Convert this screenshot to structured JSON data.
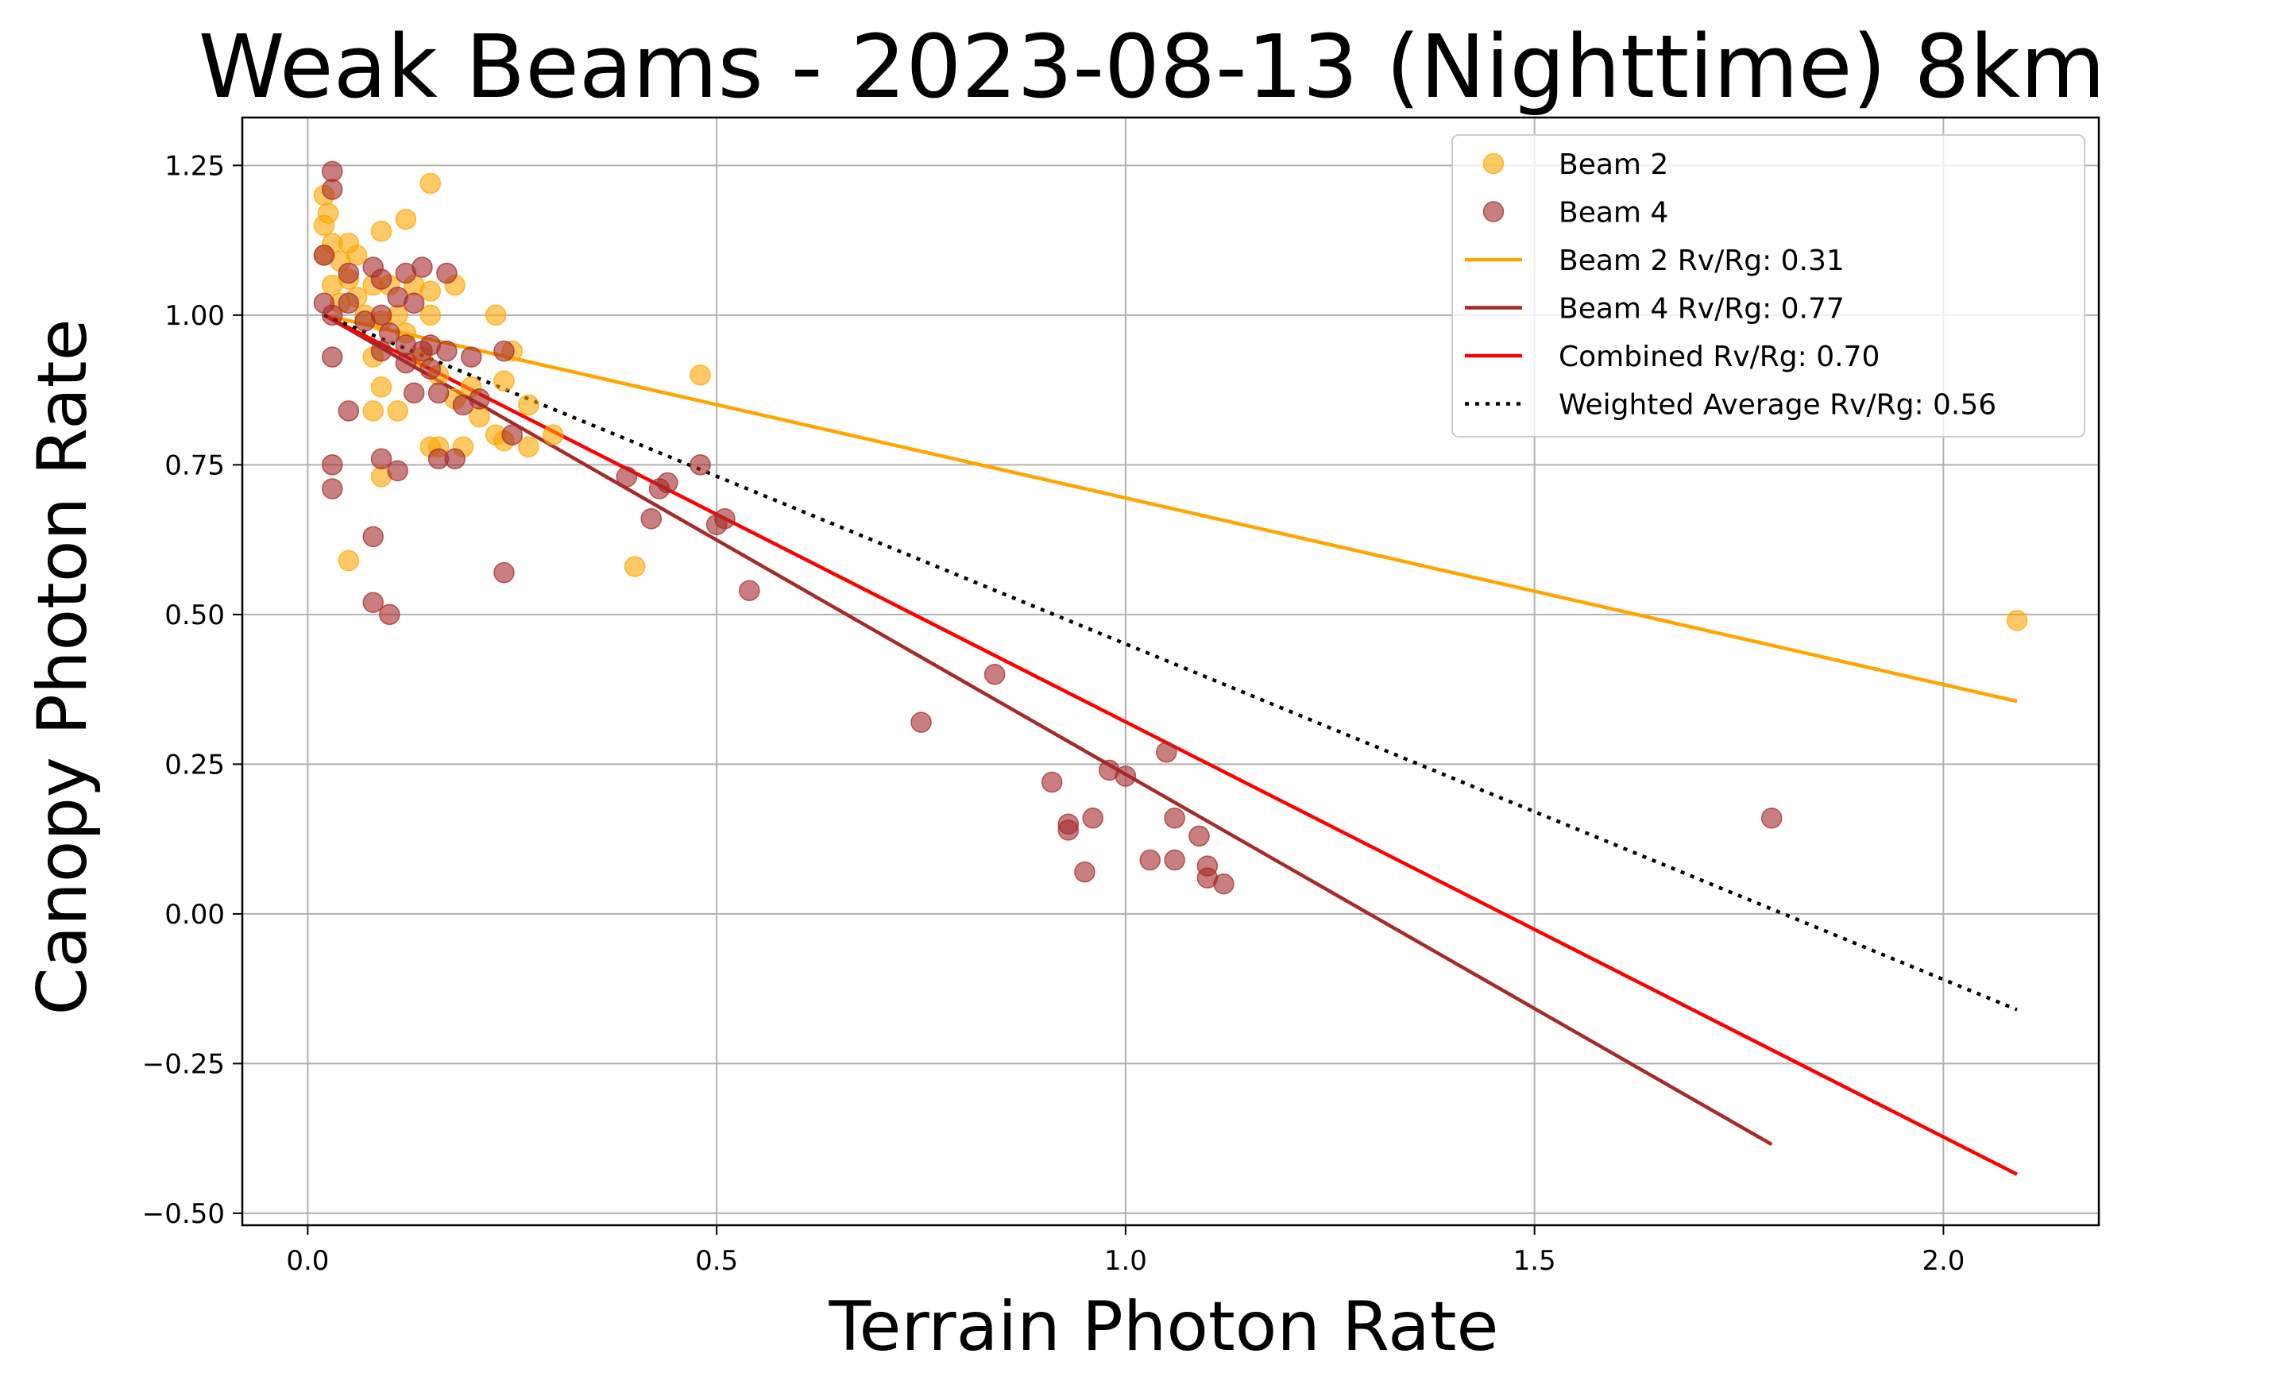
{
  "chart_data": {
    "type": "scatter",
    "title": "Weak Beams - 2023-08-13 (Nighttime) 8km",
    "xlabel": "Terrain Photon Rate",
    "ylabel": "Canopy Photon Rate",
    "xlim": [
      -0.08,
      2.19
    ],
    "ylim": [
      -0.52,
      1.33
    ],
    "xticks": [
      0.0,
      0.5,
      1.0,
      1.5,
      2.0
    ],
    "xtick_labels": [
      "0.0",
      "0.5",
      "1.0",
      "1.5",
      "2.0"
    ],
    "yticks": [
      1.25,
      1.0,
      0.75,
      0.5,
      0.25,
      0.0,
      -0.25,
      -0.5
    ],
    "ytick_labels": [
      "1.25",
      "1.00",
      "0.75",
      "0.50",
      "0.25",
      "0.00",
      "−0.25",
      "−0.50"
    ],
    "grid": true,
    "legend_position": "top-right",
    "series": [
      {
        "name": "Beam 2",
        "kind": "scatter",
        "color": "#FFA500",
        "points": [
          [
            0.02,
            1.2
          ],
          [
            0.025,
            1.17
          ],
          [
            0.02,
            1.15
          ],
          [
            0.03,
            1.12
          ],
          [
            0.02,
            1.1
          ],
          [
            0.04,
            1.09
          ],
          [
            0.05,
            1.12
          ],
          [
            0.06,
            1.1
          ],
          [
            0.05,
            1.06
          ],
          [
            0.04,
            1.02
          ],
          [
            0.06,
            1.03
          ],
          [
            0.07,
            1.0
          ],
          [
            0.08,
            1.05
          ],
          [
            0.09,
            1.14
          ],
          [
            0.12,
            1.16
          ],
          [
            0.15,
            1.22
          ],
          [
            0.1,
            1.05
          ],
          [
            0.13,
            1.05
          ],
          [
            0.15,
            1.04
          ],
          [
            0.18,
            1.05
          ],
          [
            0.11,
            1.0
          ],
          [
            0.15,
            1.0
          ],
          [
            0.09,
            0.99
          ],
          [
            0.12,
            0.97
          ],
          [
            0.14,
            0.93
          ],
          [
            0.08,
            0.93
          ],
          [
            0.16,
            0.9
          ],
          [
            0.2,
            0.88
          ],
          [
            0.18,
            0.86
          ],
          [
            0.23,
            1.0
          ],
          [
            0.25,
            0.94
          ],
          [
            0.24,
            0.89
          ],
          [
            0.27,
            0.85
          ],
          [
            0.21,
            0.83
          ],
          [
            0.09,
            0.88
          ],
          [
            0.08,
            0.84
          ],
          [
            0.11,
            0.84
          ],
          [
            0.15,
            0.78
          ],
          [
            0.16,
            0.78
          ],
          [
            0.19,
            0.78
          ],
          [
            0.23,
            0.8
          ],
          [
            0.24,
            0.79
          ],
          [
            0.27,
            0.78
          ],
          [
            0.3,
            0.8
          ],
          [
            0.09,
            0.73
          ],
          [
            0.05,
            0.59
          ],
          [
            0.4,
            0.58
          ],
          [
            0.48,
            0.9
          ],
          [
            2.09,
            0.49
          ],
          [
            0.03,
            1.05
          ]
        ]
      },
      {
        "name": "Beam 4",
        "kind": "scatter",
        "color": "#A52A2A",
        "points": [
          [
            0.03,
            1.24
          ],
          [
            0.03,
            1.21
          ],
          [
            0.02,
            1.1
          ],
          [
            0.02,
            1.02
          ],
          [
            0.03,
            1.0
          ],
          [
            0.05,
            1.07
          ],
          [
            0.08,
            1.08
          ],
          [
            0.09,
            1.06
          ],
          [
            0.12,
            1.07
          ],
          [
            0.14,
            1.08
          ],
          [
            0.17,
            1.07
          ],
          [
            0.05,
            1.02
          ],
          [
            0.09,
            1.0
          ],
          [
            0.11,
            1.03
          ],
          [
            0.13,
            1.02
          ],
          [
            0.07,
            0.99
          ],
          [
            0.1,
            0.97
          ],
          [
            0.12,
            0.95
          ],
          [
            0.14,
            0.94
          ],
          [
            0.15,
            0.95
          ],
          [
            0.17,
            0.94
          ],
          [
            0.2,
            0.93
          ],
          [
            0.24,
            0.94
          ],
          [
            0.09,
            0.94
          ],
          [
            0.12,
            0.92
          ],
          [
            0.15,
            0.91
          ],
          [
            0.16,
            0.87
          ],
          [
            0.13,
            0.87
          ],
          [
            0.19,
            0.85
          ],
          [
            0.21,
            0.86
          ],
          [
            0.03,
            0.93
          ],
          [
            0.05,
            0.84
          ],
          [
            0.16,
            0.76
          ],
          [
            0.18,
            0.76
          ],
          [
            0.25,
            0.8
          ],
          [
            0.09,
            0.76
          ],
          [
            0.11,
            0.74
          ],
          [
            0.03,
            0.75
          ],
          [
            0.03,
            0.71
          ],
          [
            0.08,
            0.63
          ],
          [
            0.08,
            0.52
          ],
          [
            0.1,
            0.5
          ],
          [
            0.24,
            0.57
          ],
          [
            0.39,
            0.73
          ],
          [
            0.44,
            0.72
          ],
          [
            0.43,
            0.71
          ],
          [
            0.48,
            0.75
          ],
          [
            0.42,
            0.66
          ],
          [
            0.5,
            0.65
          ],
          [
            0.51,
            0.66
          ],
          [
            0.54,
            0.54
          ],
          [
            0.75,
            0.32
          ],
          [
            0.84,
            0.4
          ],
          [
            0.91,
            0.22
          ],
          [
            0.93,
            0.15
          ],
          [
            0.93,
            0.14
          ],
          [
            0.96,
            0.16
          ],
          [
            0.95,
            0.07
          ],
          [
            0.98,
            0.24
          ],
          [
            1.0,
            0.23
          ],
          [
            1.05,
            0.27
          ],
          [
            1.06,
            0.16
          ],
          [
            1.09,
            0.13
          ],
          [
            1.03,
            0.09
          ],
          [
            1.06,
            0.09
          ],
          [
            1.1,
            0.08
          ],
          [
            1.1,
            0.06
          ],
          [
            1.12,
            0.05
          ],
          [
            1.79,
            0.16
          ]
        ]
      },
      {
        "name": "Beam 2 Rv/Rg: 0.31",
        "kind": "line",
        "color": "#FFA500",
        "style": "solid",
        "x": [
          0.02,
          2.09
        ],
        "y": [
          1.0,
          0.355
        ]
      },
      {
        "name": "Beam 4 Rv/Rg: 0.77",
        "kind": "line",
        "color": "#A52A2A",
        "style": "solid",
        "x": [
          0.02,
          1.79
        ],
        "y": [
          1.0,
          -0.385
        ]
      },
      {
        "name": "Combined Rv/Rg: 0.70",
        "kind": "line",
        "color": "#FF0000",
        "style": "solid",
        "x": [
          0.02,
          2.09
        ],
        "y": [
          1.0,
          -0.435
        ]
      },
      {
        "name": "Weighted Average Rv/Rg: 0.56",
        "kind": "line",
        "color": "#000000",
        "style": "dotted",
        "x": [
          0.02,
          2.09
        ],
        "y": [
          1.0,
          -0.16
        ]
      }
    ]
  }
}
